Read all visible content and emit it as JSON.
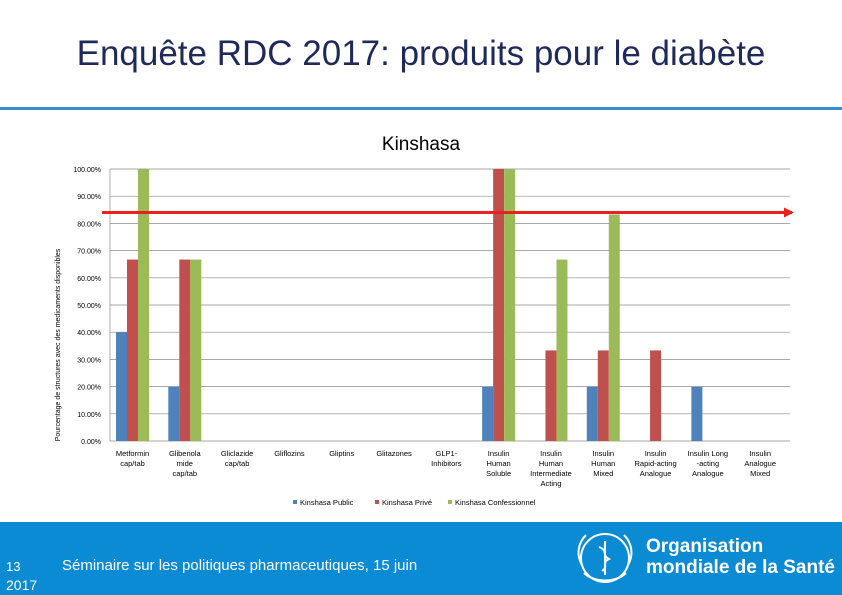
{
  "slide": {
    "title": "Enquête RDC 2017: produits pour le diabète",
    "footer_text": "Séminaire sur les politiques pharmaceutiques, 15 juin",
    "slide_number": "13",
    "year": "2017",
    "org_line1": "Organisation",
    "org_line2": "mondiale de la Santé"
  },
  "colors": {
    "title": "#1f2a5a",
    "accent_rule": "#3a8fd0",
    "footer": "#0a8bd3",
    "series_public": "#4f81bd",
    "series_prive": "#c0504d",
    "series_confessionnel": "#9bbb59",
    "reference_arrow": "#e8231f"
  },
  "chart_data": {
    "type": "bar",
    "title": "Kinshasa",
    "ylabel": "Pourcentage de structures avec des medicaments disponibles",
    "xlabel": "",
    "ylim": [
      0,
      100
    ],
    "yticks": [
      0,
      10,
      20,
      30,
      40,
      50,
      60,
      70,
      80,
      90,
      100
    ],
    "ytick_labels": [
      "0.00%",
      "10.00%",
      "20.00%",
      "30.00%",
      "40.00%",
      "50.00%",
      "60.00%",
      "70.00%",
      "80.00%",
      "90.00%",
      "100.00%"
    ],
    "grid": true,
    "legend_position": "bottom",
    "reference_line": {
      "value": 84,
      "style": "red arrow"
    },
    "categories": [
      [
        "Metformin",
        "cap/tab"
      ],
      [
        "Glibenola",
        "mide",
        "cap/tab"
      ],
      [
        "Gliclazide",
        "cap/tab"
      ],
      [
        "Gliflozins"
      ],
      [
        "Gliptins"
      ],
      [
        "Glitazones"
      ],
      [
        "GLP1-",
        "Inhibitors"
      ],
      [
        "Insulin",
        "Human",
        "Soluble"
      ],
      [
        "Insulin",
        "Human",
        "Intermediate",
        "Acting"
      ],
      [
        "Insulin",
        "Human",
        "Mixed"
      ],
      [
        "Insulin",
        "Rapid-acting",
        "Analogue"
      ],
      [
        "Insulin Long",
        "-acting",
        "Analogue"
      ],
      [
        "Insulin",
        "Analogue",
        "Mixed"
      ]
    ],
    "series": [
      {
        "name": "Kinshasa Public",
        "values": [
          40,
          20,
          0,
          0,
          0,
          0,
          0,
          20,
          0,
          20,
          0,
          20,
          0
        ]
      },
      {
        "name": "Kinshasa Privé",
        "values": [
          66.7,
          66.7,
          0,
          0,
          0,
          0,
          0,
          100,
          33.3,
          33.3,
          33.3,
          0,
          0
        ]
      },
      {
        "name": "Kinshasa Confessionnel",
        "values": [
          100,
          66.7,
          0,
          0,
          0,
          0,
          0,
          100,
          66.7,
          83.3,
          0,
          0,
          0
        ]
      }
    ]
  }
}
